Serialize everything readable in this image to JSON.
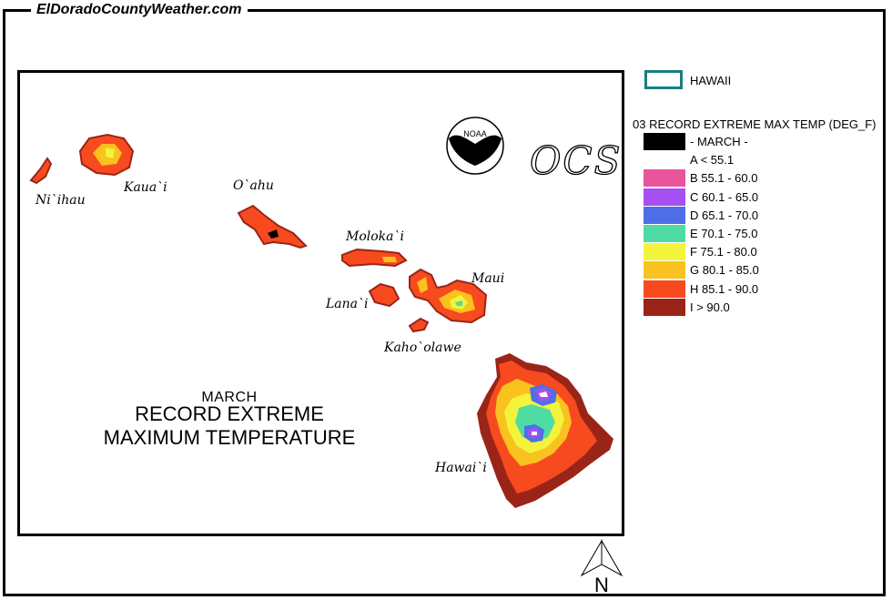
{
  "site_title": "ElDoradoCountyWeather.com",
  "map": {
    "month": "MARCH",
    "title_line1": "RECORD EXTREME",
    "title_line2": "MAXIMUM TEMPERATURE",
    "logo_text": "NOAA",
    "ocs_text": "OCS",
    "islands": {
      "niihau": "Ni`ihau",
      "kauai": "Kaua`i",
      "oahu": "O`ahu",
      "molokai": "Moloka`i",
      "lanai": "Lana`i",
      "maui": "Maui",
      "kahoolawe": "Kaho`olawe",
      "hawaii": "Hawai`i"
    }
  },
  "legend": {
    "region_label": "HAWAII",
    "region_color": "#1a7f7f",
    "title": "03 RECORD EXTREME MAX TEMP (DEG_F)",
    "items": [
      {
        "label": "- MARCH -",
        "color": "#000000"
      },
      {
        "label": "A < 55.1",
        "color": "#ffffff"
      },
      {
        "label": "B 55.1 - 60.0",
        "color": "#e8559a"
      },
      {
        "label": "C 60.1 - 65.0",
        "color": "#a64ff2"
      },
      {
        "label": "D 65.1 - 70.0",
        "color": "#4f6ee8"
      },
      {
        "label": "E 70.1 - 75.0",
        "color": "#4fdca4"
      },
      {
        "label": "F 75.1 - 80.0",
        "color": "#f3f33c"
      },
      {
        "label": "G 80.1 - 85.0",
        "color": "#f9c21e"
      },
      {
        "label": "H 85.1 - 90.0",
        "color": "#f84a1f"
      },
      {
        "label": "I > 90.0",
        "color": "#9b2418"
      }
    ]
  },
  "north_label": "N"
}
